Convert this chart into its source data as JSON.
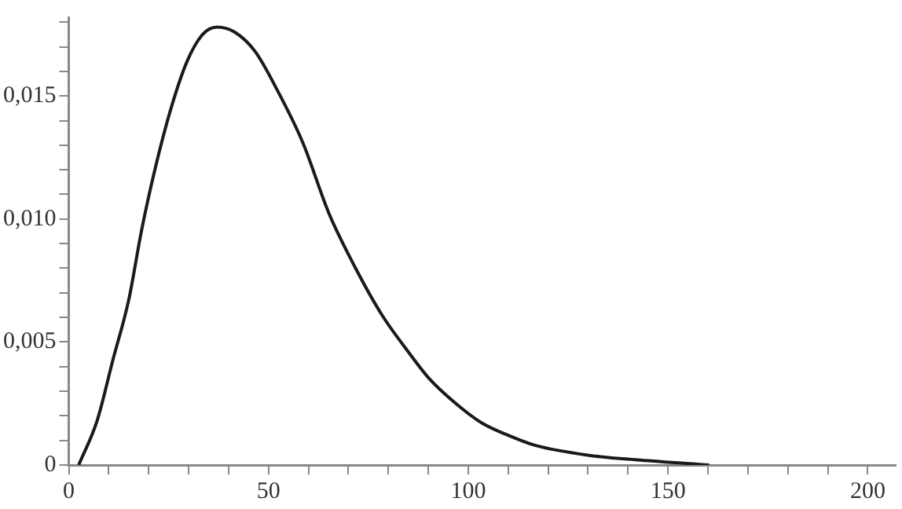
{
  "chart_data": {
    "type": "line",
    "color": "#1a1a1a",
    "marker": "none",
    "grid": false,
    "legend": false,
    "x": [
      2.5,
      7.1,
      11.1,
      15.0,
      18.3,
      21.7,
      25.6,
      29.6,
      33.5,
      37.1,
      41.5,
      46.7,
      52.0,
      58.6,
      65.2,
      71.8,
      78.4,
      85.0,
      90.3,
      96.9,
      103.5,
      110.1,
      116.7,
      129.9,
      143.1,
      160.3
    ],
    "values": [
      0,
      0.0018,
      0.0043,
      0.0067,
      0.0096,
      0.0121,
      0.0145,
      0.0164,
      0.0175,
      0.0178,
      0.0176,
      0.0168,
      0.0153,
      0.0131,
      0.0102,
      0.008,
      0.0061,
      0.0046,
      0.0035,
      0.0025,
      0.0017,
      0.0012,
      0.0008,
      0.0004,
      0.0002,
      0
    ],
    "xlim": [
      0,
      207
    ],
    "xticks": [
      0,
      {
        "value": 10,
        "label": null
      },
      {
        "value": 20,
        "label": null
      },
      {
        "value": 30,
        "label": null
      },
      {
        "value": 40,
        "label": null
      },
      50,
      {
        "value": 60,
        "label": null
      },
      {
        "value": 70,
        "label": null
      },
      {
        "value": 80,
        "label": null
      },
      {
        "value": 90,
        "label": null
      },
      100,
      {
        "value": 110,
        "label": null
      },
      {
        "value": 120,
        "label": null
      },
      {
        "value": 130,
        "label": null
      },
      {
        "value": 140,
        "label": null
      },
      150,
      {
        "value": 160,
        "label": null
      },
      {
        "value": 170,
        "label": null
      },
      {
        "value": 180,
        "label": null
      },
      {
        "value": 190,
        "label": null
      },
      200
    ],
    "ylim": [
      0,
      0.0182
    ],
    "yticks": [
      0,
      {
        "value": 0.001,
        "label": null
      },
      {
        "value": 0.002,
        "label": null
      },
      {
        "value": 0.003,
        "label": null
      },
      {
        "value": 0.004,
        "label": null
      },
      {
        "value": 0.005,
        "label": "0,005"
      },
      {
        "value": 0.006,
        "label": null
      },
      {
        "value": 0.007,
        "label": null
      },
      {
        "value": 0.008,
        "label": null
      },
      {
        "value": 0.009,
        "label": null
      },
      {
        "value": 0.01,
        "label": "0,010"
      },
      {
        "value": 0.011,
        "label": null
      },
      {
        "value": 0.012,
        "label": null
      },
      {
        "value": 0.013,
        "label": null
      },
      {
        "value": 0.014,
        "label": null
      },
      {
        "value": 0.015,
        "label": "0,015"
      },
      {
        "value": 0.016,
        "label": null
      },
      {
        "value": 0.017,
        "label": null
      },
      {
        "value": 0.018,
        "label": null
      }
    ]
  }
}
